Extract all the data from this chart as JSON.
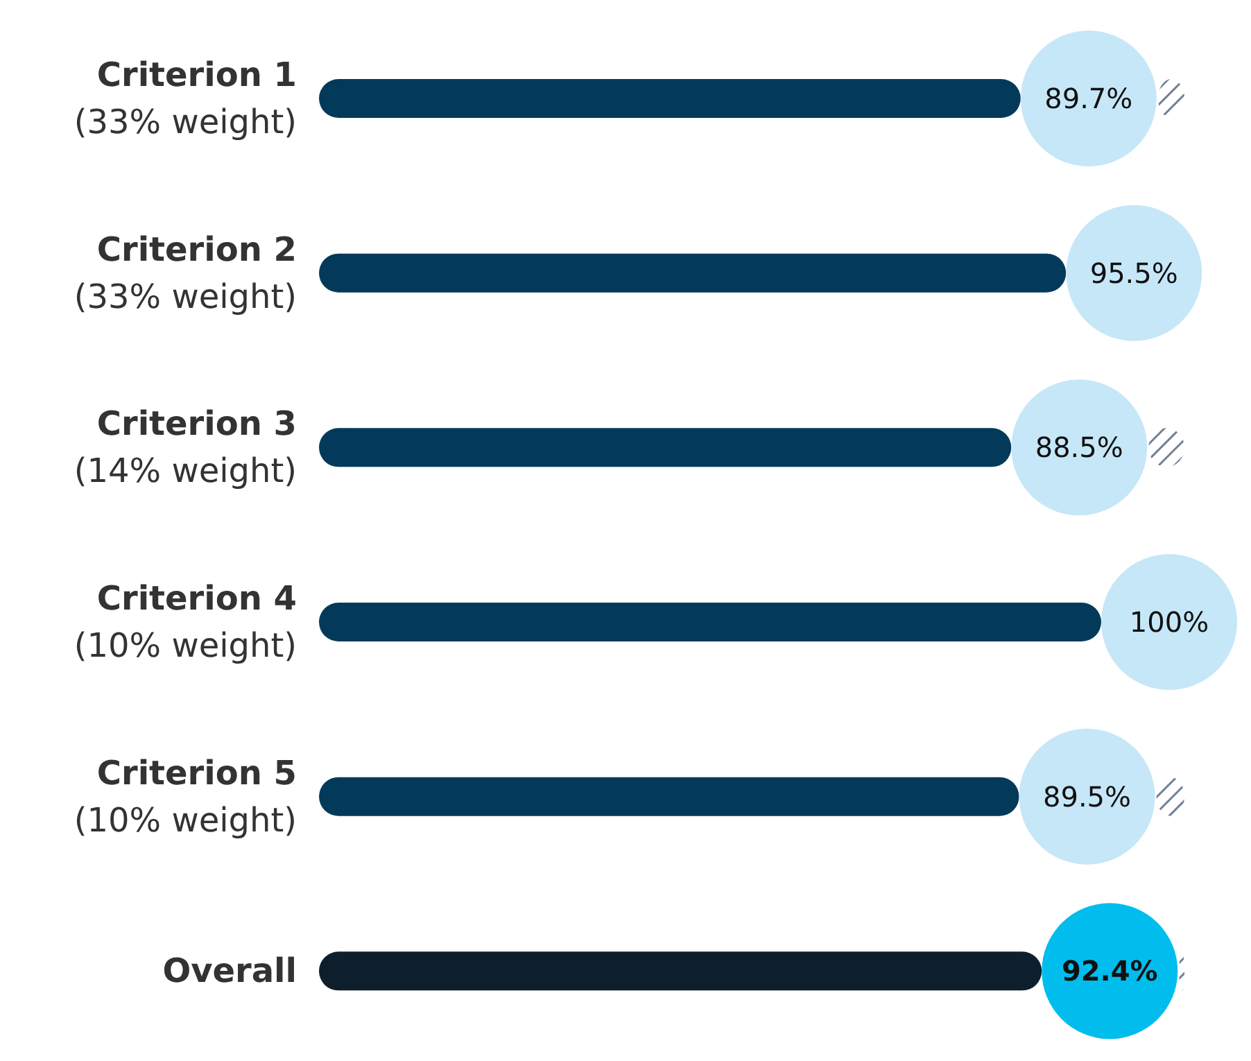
{
  "chart_data": {
    "type": "bar",
    "orientation": "horizontal",
    "categories": [
      "Criterion 1\n(33% weight)",
      "Criterion 2\n(33% weight)",
      "Criterion 3\n(14% weight)",
      "Criterion 4\n(10% weight)",
      "Criterion 5\n(10% weight)",
      "Overall"
    ],
    "values": [
      89.7,
      95.5,
      88.5,
      100,
      89.5,
      92.4
    ],
    "colors": [
      "#033a5a",
      "#033a5a",
      "#033a5a",
      "#033a5a",
      "#033a5a",
      "#0d1f2d"
    ],
    "value_labels": [
      "89.7%",
      "95.5%",
      "88.5%",
      "100%",
      "89.5%",
      "92.4%"
    ],
    "tick_labels": "y"
  }
}
